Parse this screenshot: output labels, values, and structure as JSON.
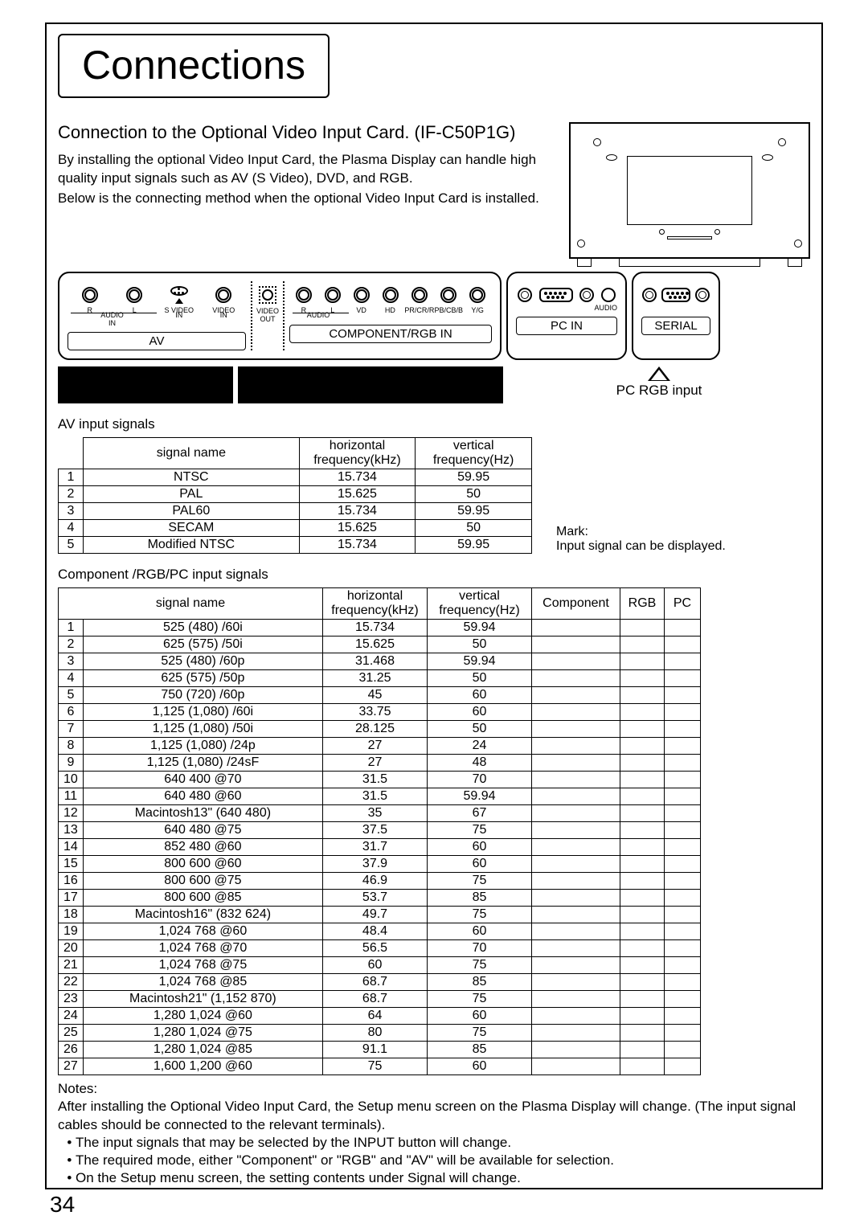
{
  "title": "Connections",
  "subtitle": "Connection to the Optional Video Input Card. (IF-C50P1G)",
  "desc1": "By installing the optional Video Input Card, the Plasma Display can handle high quality input signals such as AV (S Video), DVD, and RGB.",
  "desc2": "Below is the connecting method when the optional Video Input Card is installed.",
  "panel": {
    "audio_r": "R",
    "audio_l": "L",
    "audio_lbl": "AUDIO",
    "in": "IN",
    "svideo": "S VIDEO",
    "video": "VIDEO",
    "out": "OUT",
    "vd": "VD",
    "hd": "HD",
    "pr": "PR/CR/R",
    "pb": "PB/CB/B",
    "yg": "Y/G",
    "av": "AV",
    "comp": "COMPONENT/RGB IN",
    "pcin": "PC   IN",
    "serial": "SERIAL",
    "audio_small": "AUDIO"
  },
  "pc_rgb": "PC RGB input",
  "av_label": "AV input signals",
  "comp_label": "Component /RGB/PC input signals",
  "mark_title": "Mark:",
  "mark_desc": "Input signal can be displayed.",
  "headers": {
    "signal": "signal name",
    "hfreq": "horizontal\nfrequency(kHz)",
    "vfreq": "vertical\nfrequency(Hz)",
    "component": "Component",
    "rgb": "RGB",
    "pc": "PC"
  },
  "av_rows": [
    [
      "1",
      "NTSC",
      "15.734",
      "59.95"
    ],
    [
      "2",
      "PAL",
      "15.625",
      "50"
    ],
    [
      "3",
      "PAL60",
      "15.734",
      "59.95"
    ],
    [
      "4",
      "SECAM",
      "15.625",
      "50"
    ],
    [
      "5",
      "Modified NTSC",
      "15.734",
      "59.95"
    ]
  ],
  "comp_rows": [
    [
      "1",
      "525 (480) /60i",
      "15.734",
      "59.94"
    ],
    [
      "2",
      "625 (575) /50i",
      "15.625",
      "50"
    ],
    [
      "3",
      "525 (480) /60p",
      "31.468",
      "59.94"
    ],
    [
      "4",
      "625 (575) /50p",
      "31.25",
      "50"
    ],
    [
      "5",
      "750 (720) /60p",
      "45",
      "60"
    ],
    [
      "6",
      "1,125 (1,080) /60i",
      "33.75",
      "60"
    ],
    [
      "7",
      "1,125 (1,080) /50i",
      "28.125",
      "50"
    ],
    [
      "8",
      "1,125 (1,080) /24p",
      "27",
      "24"
    ],
    [
      "9",
      "1,125 (1,080) /24sF",
      "27",
      "48"
    ],
    [
      "10",
      "640    400 @70",
      "31.5",
      "70"
    ],
    [
      "11",
      "640    480 @60",
      "31.5",
      "59.94"
    ],
    [
      "12",
      "Macintosh13\" (640    480)",
      "35",
      "67"
    ],
    [
      "13",
      "640    480 @75",
      "37.5",
      "75"
    ],
    [
      "14",
      "852    480 @60",
      "31.7",
      "60"
    ],
    [
      "15",
      "800    600 @60",
      "37.9",
      "60"
    ],
    [
      "16",
      "800    600 @75",
      "46.9",
      "75"
    ],
    [
      "17",
      "800    600 @85",
      "53.7",
      "85"
    ],
    [
      "18",
      "Macintosh16\" (832    624)",
      "49.7",
      "75"
    ],
    [
      "19",
      "1,024    768 @60",
      "48.4",
      "60"
    ],
    [
      "20",
      "1,024    768 @70",
      "56.5",
      "70"
    ],
    [
      "21",
      "1,024    768 @75",
      "60",
      "75"
    ],
    [
      "22",
      "1,024    768 @85",
      "68.7",
      "85"
    ],
    [
      "23",
      "Macintosh21\" (1,152    870)",
      "68.7",
      "75"
    ],
    [
      "24",
      "1,280    1,024 @60",
      "64",
      "60"
    ],
    [
      "25",
      "1,280    1,024 @75",
      "80",
      "75"
    ],
    [
      "26",
      "1,280    1,024 @85",
      "91.1",
      "85"
    ],
    [
      "27",
      "1,600    1,200 @60",
      "75",
      "60"
    ]
  ],
  "notes_title": "Notes:",
  "notes_para": "After installing the Optional Video Input Card, the Setup menu screen on the Plasma Display will change. (The input signal cables should be connected to the relevant terminals).",
  "notes_bullets": [
    "The input signals that may be selected by the INPUT button will change.",
    "The required mode, either \"Component\" or \"RGB\" and \"AV\" will be available for selection.",
    "On the Setup menu screen, the setting contents under Signal will change."
  ],
  "page_num": "34"
}
